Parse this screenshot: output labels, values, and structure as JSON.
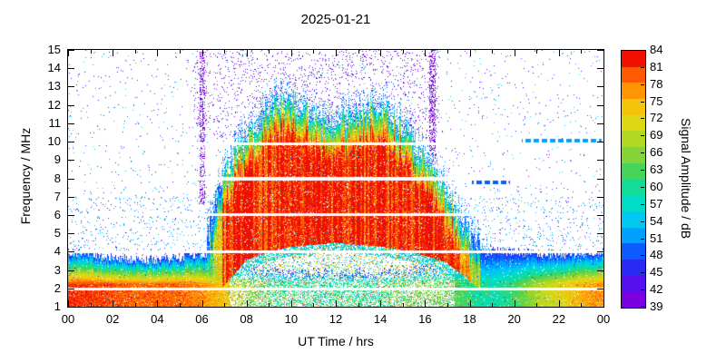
{
  "chart_data": {
    "type": "heatmap",
    "title": "2025-01-21",
    "xlabel": "UT Time / hrs",
    "ylabel": "Frequency / MHz",
    "colorbar_label": "Signal Amplitude / dB",
    "x_range": [
      0,
      24
    ],
    "y_range": [
      1,
      15
    ],
    "x_ticks": [
      {
        "v": 0,
        "label": "00"
      },
      {
        "v": 2,
        "label": "02"
      },
      {
        "v": 4,
        "label": "04"
      },
      {
        "v": 6,
        "label": "06"
      },
      {
        "v": 8,
        "label": "08"
      },
      {
        "v": 10,
        "label": "10"
      },
      {
        "v": 12,
        "label": "12"
      },
      {
        "v": 14,
        "label": "14"
      },
      {
        "v": 16,
        "label": "16"
      },
      {
        "v": 18,
        "label": "18"
      },
      {
        "v": 20,
        "label": "20"
      },
      {
        "v": 22,
        "label": "22"
      },
      {
        "v": 24,
        "label": "00"
      }
    ],
    "x_minor_ticks": [
      1,
      3,
      5,
      7,
      9,
      11,
      13,
      15,
      17,
      19,
      21,
      23
    ],
    "y_ticks": [
      1,
      2,
      3,
      4,
      5,
      6,
      7,
      8,
      9,
      10,
      11,
      12,
      13,
      14,
      15
    ],
    "colorbar": {
      "min": 39,
      "max": 84,
      "tick_step": 3,
      "ticks": [
        39,
        42,
        45,
        48,
        51,
        54,
        57,
        60,
        63,
        66,
        69,
        72,
        75,
        78,
        81,
        84
      ],
      "colors": [
        "#7a00e0",
        "#5510f0",
        "#2a2af5",
        "#0a5cff",
        "#00a0ff",
        "#00c8f0",
        "#00dcc8",
        "#14dc96",
        "#46d45a",
        "#82d437",
        "#b4d822",
        "#dcd814",
        "#f5c30a",
        "#ff9405",
        "#ff5a02",
        "#f01000"
      ]
    },
    "pattern": {
      "description": "Ionosonde spectrogram: strong daytime echo blob ~06:30-18:30 UT reaching ~12 MHz near 10 UT, persistent low-frequency band 1-3.5 MHz strongest at night, sparse blue/purple background noise, purple noise patch above 10 MHz between ~06-16.5 UT, white horizontal interference gaps.",
      "envelope_max_mhz": [
        2.9,
        2.7,
        2.6,
        2.6,
        2.7,
        2.9,
        3.8,
        8.5,
        10.2,
        11.8,
        12.3,
        11.2,
        11.0,
        11.6,
        11.9,
        10.8,
        9.0,
        7.0,
        4.8,
        3.2,
        2.9,
        2.8,
        2.7,
        2.8,
        2.9
      ],
      "day_bottom_mhz": [
        1,
        1,
        1,
        1,
        1,
        1,
        1.5,
        2.2,
        3.6,
        4.0,
        4.3,
        4.4,
        4.5,
        4.4,
        4.3,
        4.1,
        3.8,
        3.4,
        2.4,
        1.4,
        1,
        1,
        1,
        1,
        1
      ],
      "low_band_top_mhz": [
        3.4,
        3.3,
        3.1,
        3.0,
        3.0,
        3.1,
        3.3,
        3.0,
        2.6,
        2.4,
        2.3,
        2.3,
        2.3,
        2.3,
        2.3,
        2.4,
        2.6,
        2.8,
        3.2,
        3.5,
        3.4,
        3.3,
        3.3,
        3.3,
        3.4
      ],
      "low_band_amp_db": [
        84,
        84,
        83,
        82,
        82,
        82,
        80,
        76,
        68,
        64,
        62,
        62,
        62,
        62,
        63,
        65,
        67,
        66,
        62,
        60,
        64,
        70,
        74,
        78,
        80
      ],
      "day_hours": [
        6.2,
        19.0
      ],
      "white_gap_freqs_mhz": [
        2.0,
        4.0,
        6.05,
        8.0,
        9.9
      ],
      "purple_noise_region": {
        "t0": 5.6,
        "t1": 16.6,
        "fmin": 10.2,
        "density": 0.055
      },
      "purple_streak_hours": [
        6.0,
        16.3
      ],
      "dashed_lines": [
        {
          "f": 10.1,
          "t0": 20.3,
          "t1": 23.9,
          "amp": 51
        },
        {
          "f": 7.8,
          "t0": 18.1,
          "t1": 19.8,
          "amp": 48
        }
      ],
      "background_noise_amp_range": [
        39,
        59
      ]
    }
  }
}
